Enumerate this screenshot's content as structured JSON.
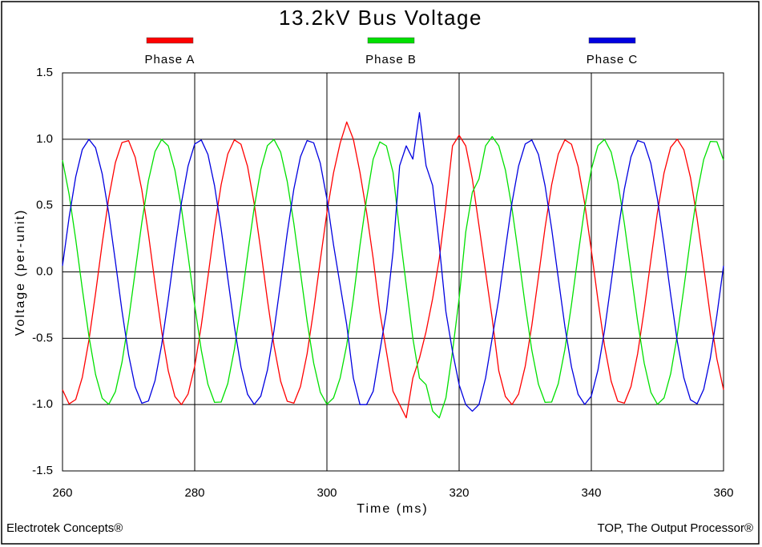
{
  "chart_data": {
    "type": "line",
    "title": "13.2kV Bus Voltage",
    "x_label": "Time (ms)",
    "y_label": "Voltage (per-unit)",
    "annotations": [
      "Electrotek Concepts®",
      "TOP, The Output Processor®"
    ],
    "grid": true,
    "legend_position": "top",
    "xlim": [
      260,
      360
    ],
    "xticks": [
      260,
      280,
      300,
      320,
      340,
      360
    ],
    "ylim": [
      -1.5,
      1.5
    ],
    "yticks": [
      -1.5,
      {
        "value": -1,
        "label": "-1.0"
      },
      -0.5,
      {
        "value": 0,
        "label": "0.0"
      },
      0.5,
      {
        "value": 1,
        "label": "1.0"
      },
      1.5
    ],
    "x": [
      260,
      261,
      262,
      263,
      264,
      265,
      266,
      267,
      268,
      269,
      270,
      271,
      272,
      273,
      274,
      275,
      276,
      277,
      278,
      279,
      280,
      281,
      282,
      283,
      284,
      285,
      286,
      287,
      288,
      289,
      290,
      291,
      292,
      293,
      294,
      295,
      296,
      297,
      298,
      299,
      300,
      301,
      302,
      303,
      304,
      305,
      306,
      307,
      308,
      309,
      310,
      311,
      312,
      313,
      314,
      315,
      316,
      317,
      318,
      319,
      320,
      321,
      322,
      323,
      324,
      325,
      326,
      327,
      328,
      329,
      330,
      331,
      332,
      333,
      334,
      335,
      336,
      337,
      338,
      339,
      340,
      341,
      342,
      343,
      344,
      345,
      346,
      347,
      348,
      349,
      350,
      351,
      352,
      353,
      354,
      355,
      356,
      357,
      358,
      359,
      360
    ],
    "series": [
      {
        "name": "Phase A",
        "color": "#ff0000",
        "values": [
          -0.888,
          -0.995,
          -0.962,
          -0.794,
          -0.514,
          -0.163,
          0.212,
          0.557,
          0.824,
          0.975,
          0.989,
          0.864,
          0.618,
          0.285,
          -0.088,
          -0.448,
          -0.746,
          -0.939,
          -1.0,
          -0.92,
          -0.711,
          -0.403,
          -0.038,
          0.333,
          0.657,
          0.888,
          0.995,
          0.962,
          0.794,
          0.514,
          0.163,
          -0.212,
          -0.557,
          -0.824,
          -0.975,
          -0.989,
          -0.864,
          -0.618,
          -0.285,
          0.088,
          0.448,
          0.746,
          0.97,
          1.13,
          1.0,
          0.75,
          0.45,
          0.1,
          -0.3,
          -0.6,
          -0.9,
          -1.0,
          -1.1,
          -0.8,
          -0.65,
          -0.45,
          -0.2,
          0.1,
          0.5,
          0.95,
          1.03,
          0.95,
          0.7,
          0.35,
          0.0,
          -0.35,
          -0.746,
          -0.939,
          -1.0,
          -0.92,
          -0.711,
          -0.403,
          -0.038,
          0.333,
          0.657,
          0.888,
          0.995,
          0.962,
          0.794,
          0.514,
          0.163,
          -0.212,
          -0.557,
          -0.824,
          -0.975,
          -0.989,
          -0.864,
          -0.618,
          -0.285,
          0.088,
          0.448,
          0.746,
          0.939,
          1.0,
          0.92,
          0.711,
          0.403,
          0.038,
          -0.333,
          -0.657,
          -0.888
        ]
      },
      {
        "name": "Phase B",
        "color": "#00e000",
        "values": [
          0.842,
          0.584,
          0.245,
          -0.129,
          -0.485,
          -0.773,
          -0.952,
          -0.998,
          -0.903,
          -0.681,
          -0.364,
          0.004,
          0.372,
          0.688,
          0.907,
          0.998,
          0.95,
          0.768,
          0.478,
          0.121,
          -0.253,
          -0.591,
          -0.847,
          -0.983,
          -0.981,
          -0.842,
          -0.584,
          -0.245,
          0.129,
          0.485,
          0.773,
          0.952,
          0.998,
          0.903,
          0.681,
          0.364,
          -0.004,
          -0.372,
          -0.688,
          -0.907,
          -0.998,
          -0.95,
          -0.8,
          -0.55,
          -0.2,
          0.2,
          0.55,
          0.85,
          0.98,
          0.95,
          0.75,
          0.3,
          -0.1,
          -0.5,
          -0.8,
          -0.85,
          -1.05,
          -1.1,
          -0.95,
          -0.6,
          -0.2,
          0.3,
          0.6,
          0.7,
          0.95,
          1.02,
          0.95,
          0.768,
          0.478,
          0.121,
          -0.253,
          -0.591,
          -0.847,
          -0.983,
          -0.981,
          -0.842,
          -0.584,
          -0.245,
          0.129,
          0.485,
          0.773,
          0.952,
          0.998,
          0.903,
          0.681,
          0.364,
          -0.004,
          -0.372,
          -0.688,
          -0.907,
          -0.998,
          -0.95,
          -0.768,
          -0.478,
          -0.121,
          0.253,
          0.591,
          0.847,
          0.983,
          0.981,
          0.842
        ]
      },
      {
        "name": "Phase C",
        "color": "#0000e0",
        "values": [
          0.046,
          0.411,
          0.717,
          0.923,
          0.999,
          0.936,
          0.74,
          0.441,
          0.079,
          -0.294,
          -0.625,
          -0.868,
          -0.99,
          -0.973,
          -0.819,
          -0.55,
          -0.204,
          0.171,
          0.522,
          0.799,
          0.964,
          0.994,
          0.885,
          0.65,
          0.324,
          -0.046,
          -0.411,
          -0.717,
          -0.923,
          -0.999,
          -0.936,
          -0.74,
          -0.441,
          -0.079,
          0.294,
          0.625,
          0.868,
          0.99,
          0.973,
          0.819,
          0.55,
          0.204,
          -0.1,
          -0.4,
          -0.8,
          -1.0,
          -1.0,
          -0.9,
          -0.6,
          -0.3,
          0.15,
          0.8,
          0.95,
          0.85,
          1.2,
          0.8,
          0.65,
          0.2,
          -0.3,
          -0.6,
          -0.85,
          -1.0,
          -1.05,
          -1.0,
          -0.8,
          -0.5,
          -0.204,
          0.171,
          0.522,
          0.799,
          0.964,
          0.994,
          0.885,
          0.65,
          0.324,
          -0.046,
          -0.411,
          -0.717,
          -0.923,
          -0.999,
          -0.936,
          -0.74,
          -0.441,
          -0.079,
          0.294,
          0.625,
          0.868,
          0.99,
          0.973,
          0.819,
          0.55,
          0.204,
          -0.171,
          -0.522,
          -0.799,
          -0.964,
          -0.994,
          -0.885,
          -0.65,
          -0.324,
          0.046
        ]
      }
    ]
  }
}
